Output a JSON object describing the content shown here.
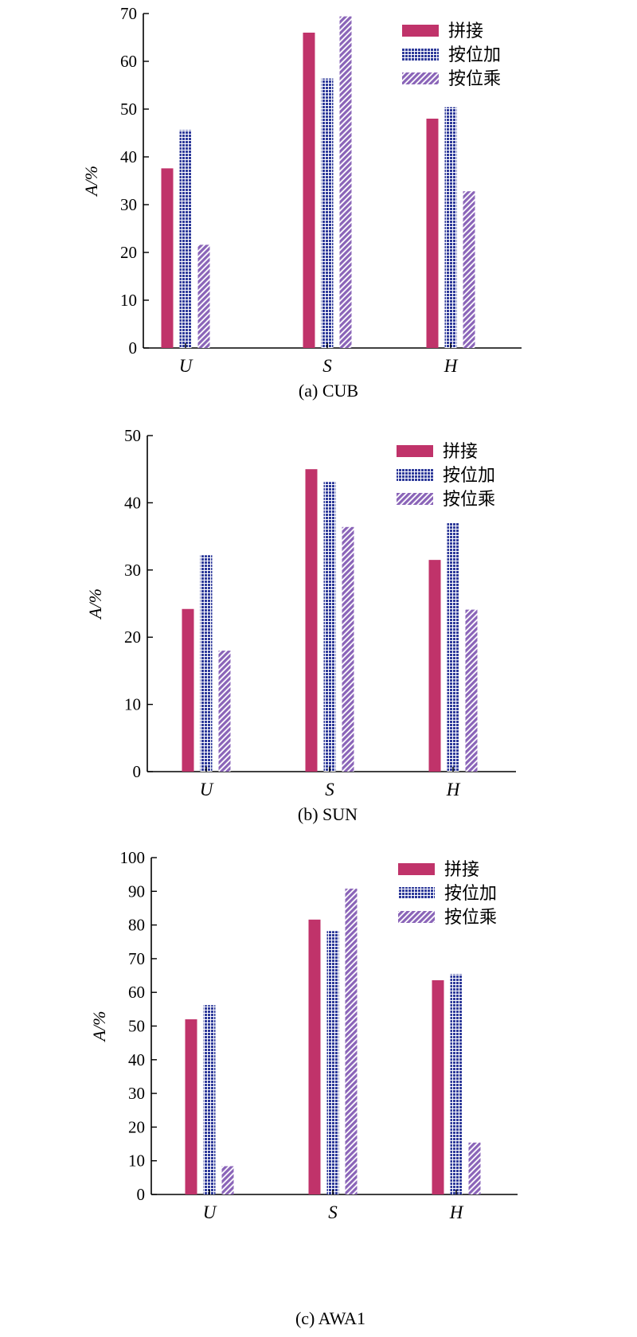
{
  "colors": {
    "concat": "#c0336a",
    "add": "#2e3a9a",
    "mult": "#8a64b8",
    "axis": "#000000"
  },
  "chart_data": [
    {
      "type": "bar",
      "title": "(a) CUB",
      "ylabel": "A/%",
      "xlabel": "",
      "categories": [
        "U",
        "S",
        "H"
      ],
      "ylim": [
        0,
        70
      ],
      "yticks": [
        0,
        10,
        20,
        30,
        40,
        50,
        60,
        70
      ],
      "legend_position": "top-right",
      "series": [
        {
          "name": "拼接",
          "pattern": "solid",
          "values": [
            37.6,
            66.0,
            48.0
          ]
        },
        {
          "name": "按位加",
          "pattern": "grid",
          "values": [
            45.6,
            56.4,
            50.4
          ]
        },
        {
          "name": "按位乘",
          "pattern": "hatch",
          "values": [
            21.6,
            69.4,
            32.8
          ]
        }
      ]
    },
    {
      "type": "bar",
      "title": "(b) SUN",
      "ylabel": "A/%",
      "xlabel": "",
      "categories": [
        "U",
        "S",
        "H"
      ],
      "ylim": [
        0,
        50
      ],
      "yticks": [
        0,
        10,
        20,
        30,
        40,
        50
      ],
      "legend_position": "top-right",
      "series": [
        {
          "name": "拼接",
          "pattern": "solid",
          "values": [
            24.2,
            45.0,
            31.5
          ]
        },
        {
          "name": "按位加",
          "pattern": "grid",
          "values": [
            32.2,
            43.1,
            37.0
          ]
        },
        {
          "name": "按位乘",
          "pattern": "hatch",
          "values": [
            18.0,
            36.4,
            24.1
          ]
        }
      ]
    },
    {
      "type": "bar",
      "title": "(c) AWA1",
      "ylabel": "A/%",
      "xlabel": "",
      "categories": [
        "U",
        "S",
        "H"
      ],
      "ylim": [
        0,
        100
      ],
      "yticks": [
        0,
        10,
        20,
        30,
        40,
        50,
        60,
        70,
        80,
        90,
        100
      ],
      "legend_position": "top-right",
      "series": [
        {
          "name": "拼接",
          "pattern": "solid",
          "values": [
            52.0,
            81.6,
            63.6
          ]
        },
        {
          "name": "按位加",
          "pattern": "grid",
          "values": [
            56.2,
            78.2,
            65.4
          ]
        },
        {
          "name": "按位乘",
          "pattern": "hatch",
          "values": [
            8.4,
            90.8,
            15.4
          ]
        }
      ]
    }
  ]
}
